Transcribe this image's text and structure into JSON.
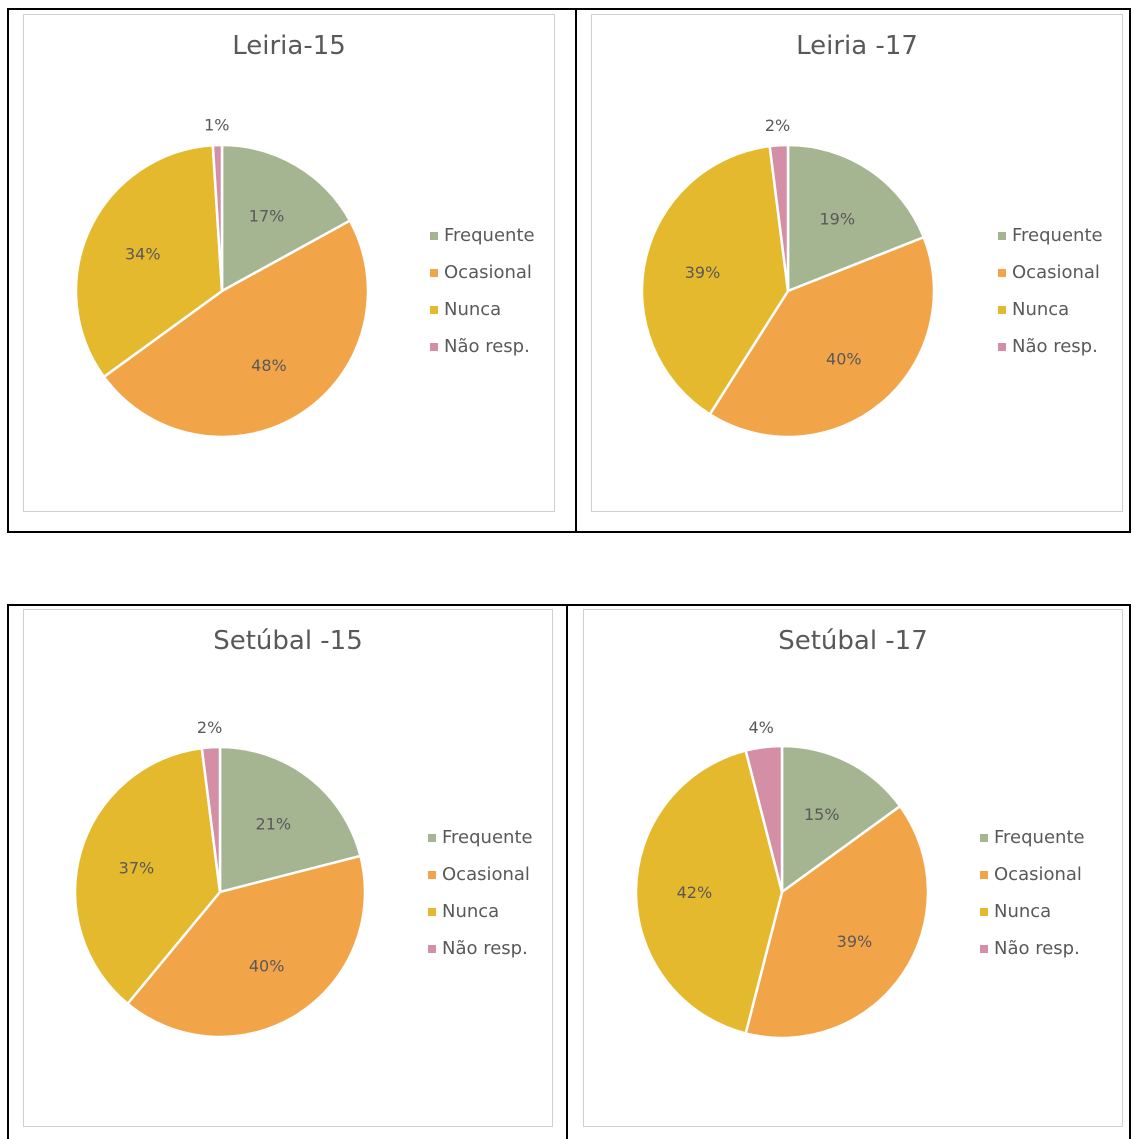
{
  "colors": {
    "Frequente": "#a5b592",
    "Ocasional": "#f2a449",
    "Nunca": "#e4b92d",
    "Não resp.": "#d48fa7"
  },
  "chart_data": [
    {
      "type": "pie",
      "title": "Leiria-15",
      "categories": [
        "Frequente",
        "Ocasional",
        "Nunca",
        "Não resp."
      ],
      "values": [
        17,
        48,
        34,
        1
      ],
      "labels": [
        "17%",
        "48%",
        "34%",
        "1%"
      ]
    },
    {
      "type": "pie",
      "title": "Leiria -17",
      "categories": [
        "Frequente",
        "Ocasional",
        "Nunca",
        "Não resp."
      ],
      "values": [
        19,
        40,
        39,
        2
      ],
      "labels": [
        "19%",
        "40%",
        "39%",
        "2%"
      ]
    },
    {
      "type": "pie",
      "title": "Setúbal -15",
      "categories": [
        "Frequente",
        "Ocasional",
        "Nunca",
        "Não resp."
      ],
      "values": [
        21,
        40,
        37,
        2
      ],
      "labels": [
        "21%",
        "40%",
        "37%",
        "2%"
      ]
    },
    {
      "type": "pie",
      "title": "Setúbal -17",
      "categories": [
        "Frequente",
        "Ocasional",
        "Nunca",
        "Não resp."
      ],
      "values": [
        15,
        39,
        42,
        4
      ],
      "labels": [
        "15%",
        "39%",
        "42%",
        "4%"
      ]
    }
  ]
}
